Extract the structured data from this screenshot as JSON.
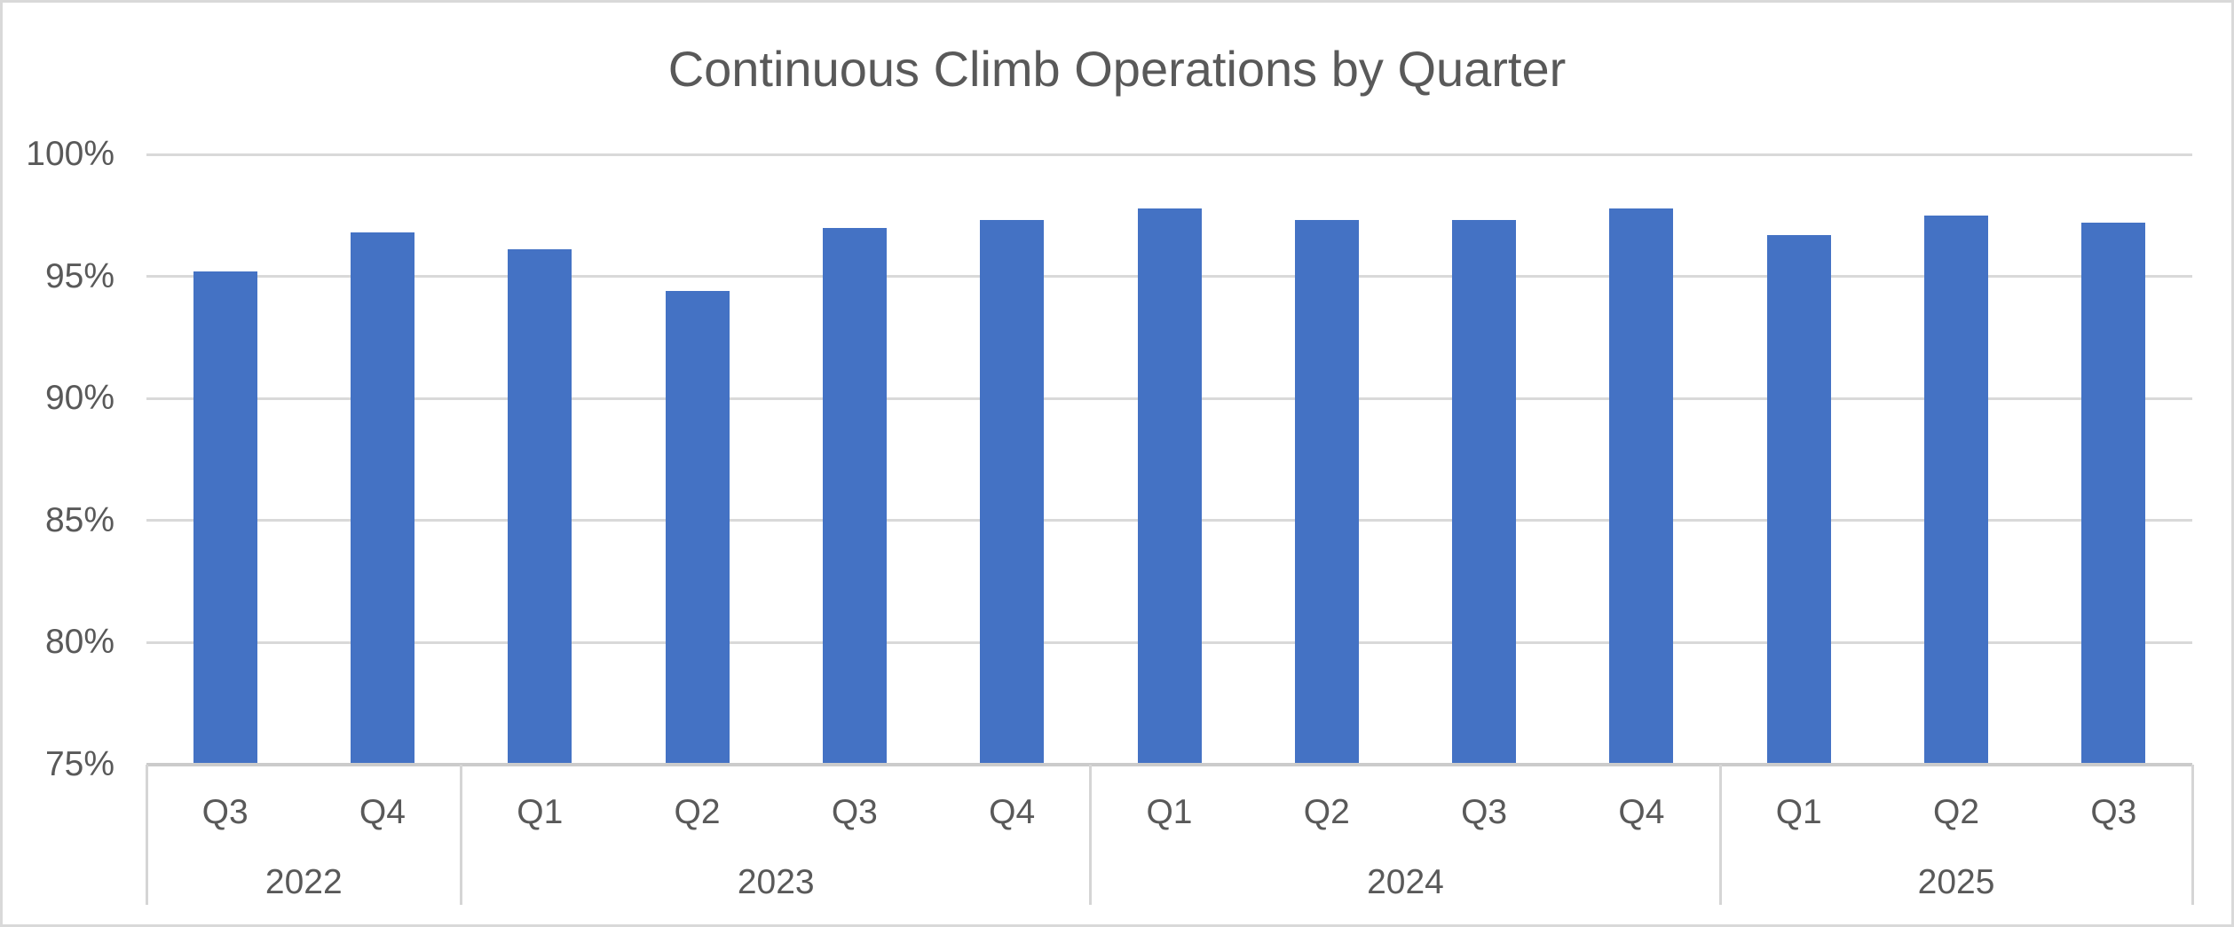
{
  "chart_data": {
    "type": "bar",
    "title": "Continuous Climb Operations by Quarter",
    "xlabel": "",
    "ylabel": "",
    "unit": "%",
    "categories": [
      "Q3",
      "Q4",
      "Q1",
      "Q2",
      "Q3",
      "Q4",
      "Q1",
      "Q2",
      "Q3",
      "Q4",
      "Q1",
      "Q2",
      "Q3"
    ],
    "year_groups": [
      {
        "label": "2022",
        "span": 2
      },
      {
        "label": "2023",
        "span": 4
      },
      {
        "label": "2024",
        "span": 4
      },
      {
        "label": "2025",
        "span": 3
      }
    ],
    "values": [
      95.2,
      96.8,
      96.1,
      94.4,
      97.0,
      97.3,
      97.8,
      97.3,
      97.3,
      97.8,
      96.7,
      97.5,
      97.2
    ],
    "ylim": [
      75,
      100
    ],
    "ytick_step": 5,
    "yticks": [
      {
        "value": 75,
        "label": "75%"
      },
      {
        "value": 80,
        "label": "80%"
      },
      {
        "value": 85,
        "label": "85%"
      },
      {
        "value": 90,
        "label": "90%"
      },
      {
        "value": 95,
        "label": "95%"
      },
      {
        "value": 100,
        "label": "100%"
      }
    ],
    "grid": true,
    "legend": "none",
    "colors": {
      "bar": "#4472C4",
      "gridline": "#D9D9D9",
      "axis_line": "#CBCBCB",
      "text": "#595959",
      "frame_border": "#D9D9D9",
      "background": "#FFFFFF"
    }
  }
}
